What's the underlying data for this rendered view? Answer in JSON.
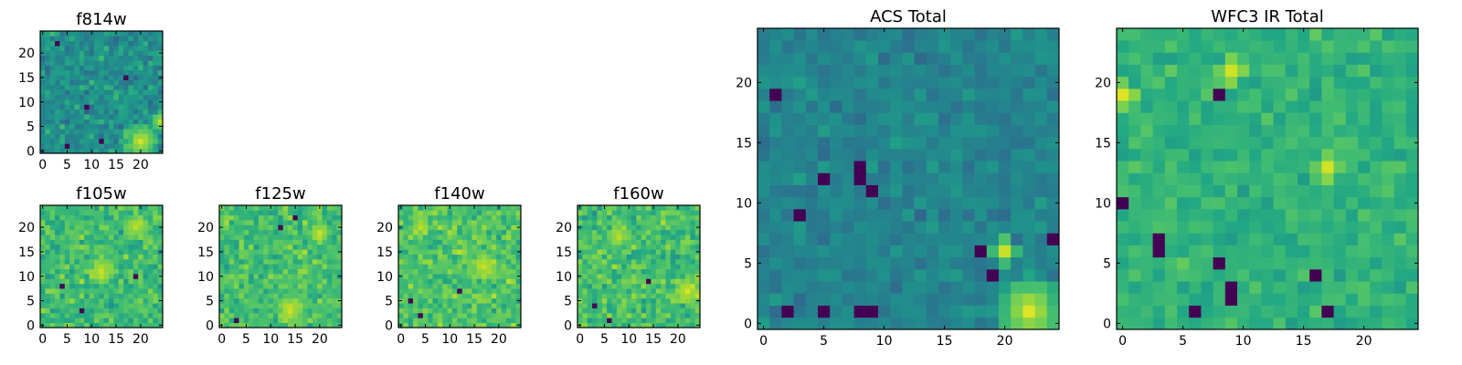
{
  "colormap": "viridis",
  "chart_data": [
    {
      "type": "heatmap",
      "title": "f814w",
      "grid_size": 25,
      "xticks": [
        "0",
        "5",
        "10",
        "15",
        "20"
      ],
      "yticks": [
        "0",
        "5",
        "10",
        "15",
        "20"
      ],
      "xlim": [
        -0.5,
        24.5
      ],
      "ylim": [
        -0.5,
        24.5
      ],
      "value_range": [
        0,
        1
      ],
      "noise_seed": 814,
      "noise_mean": 0.5,
      "noise_spread": 0.22,
      "hotspots": [
        {
          "x": 20,
          "y": 2,
          "radius": 4,
          "value": 0.95
        },
        {
          "x": 24,
          "y": 6,
          "radius": 2,
          "value": 0.9
        }
      ],
      "dark_spots": [
        {
          "x": 5,
          "y": 1
        },
        {
          "x": 9,
          "y": 9
        },
        {
          "x": 12,
          "y": 2
        },
        {
          "x": 3,
          "y": 22
        },
        {
          "x": 17,
          "y": 15
        }
      ]
    },
    {
      "type": "heatmap",
      "title": "f105w",
      "grid_size": 25,
      "xticks": [
        "0",
        "5",
        "10",
        "15",
        "20"
      ],
      "yticks": [
        "0",
        "5",
        "10",
        "15",
        "20"
      ],
      "xlim": [
        -0.5,
        24.5
      ],
      "ylim": [
        -0.5,
        24.5
      ],
      "value_range": [
        0,
        1
      ],
      "noise_seed": 105,
      "noise_mean": 0.68,
      "noise_spread": 0.2,
      "hotspots": [
        {
          "x": 12,
          "y": 11,
          "radius": 3,
          "value": 0.92
        },
        {
          "x": 19,
          "y": 20,
          "radius": 3,
          "value": 0.9
        }
      ],
      "dark_spots": [
        {
          "x": 4,
          "y": 8
        },
        {
          "x": 19,
          "y": 10
        },
        {
          "x": 8,
          "y": 3
        }
      ]
    },
    {
      "type": "heatmap",
      "title": "f125w",
      "grid_size": 25,
      "xticks": [
        "0",
        "5",
        "10",
        "15",
        "20"
      ],
      "yticks": [
        "0",
        "5",
        "10",
        "15",
        "20"
      ],
      "xlim": [
        -0.5,
        24.5
      ],
      "ylim": [
        -0.5,
        24.5
      ],
      "value_range": [
        0,
        1
      ],
      "noise_seed": 125,
      "noise_mean": 0.7,
      "noise_spread": 0.2,
      "hotspots": [
        {
          "x": 14,
          "y": 3,
          "radius": 3,
          "value": 0.93
        },
        {
          "x": 20,
          "y": 19,
          "radius": 2,
          "value": 0.92
        }
      ],
      "dark_spots": [
        {
          "x": 12,
          "y": 20
        },
        {
          "x": 3,
          "y": 1
        },
        {
          "x": 15,
          "y": 22
        }
      ]
    },
    {
      "type": "heatmap",
      "title": "f140w",
      "grid_size": 25,
      "xticks": [
        "0",
        "5",
        "10",
        "15",
        "20"
      ],
      "yticks": [
        "0",
        "5",
        "10",
        "15",
        "20"
      ],
      "xlim": [
        -0.5,
        24.5
      ],
      "ylim": [
        -0.5,
        24.5
      ],
      "value_range": [
        0,
        1
      ],
      "noise_seed": 140,
      "noise_mean": 0.72,
      "noise_spread": 0.2,
      "hotspots": [
        {
          "x": 17,
          "y": 12,
          "radius": 3,
          "value": 0.92
        },
        {
          "x": 4,
          "y": 20,
          "radius": 2,
          "value": 0.9
        }
      ],
      "dark_spots": [
        {
          "x": 2,
          "y": 5
        },
        {
          "x": 4,
          "y": 2
        },
        {
          "x": 12,
          "y": 7
        }
      ]
    },
    {
      "type": "heatmap",
      "title": "f160w",
      "grid_size": 25,
      "xticks": [
        "0",
        "5",
        "10",
        "15",
        "20"
      ],
      "yticks": [
        "0",
        "5",
        "10",
        "15",
        "20"
      ],
      "xlim": [
        -0.5,
        24.5
      ],
      "ylim": [
        -0.5,
        24.5
      ],
      "value_range": [
        0,
        1
      ],
      "noise_seed": 160,
      "noise_mean": 0.7,
      "noise_spread": 0.21,
      "hotspots": [
        {
          "x": 22,
          "y": 7,
          "radius": 3,
          "value": 0.95
        },
        {
          "x": 8,
          "y": 18,
          "radius": 2,
          "value": 0.9
        }
      ],
      "dark_spots": [
        {
          "x": 6,
          "y": 1
        },
        {
          "x": 3,
          "y": 4
        },
        {
          "x": 14,
          "y": 9
        }
      ]
    },
    {
      "type": "heatmap",
      "title": "ACS Total",
      "grid_size": 25,
      "xticks": [
        "0",
        "5",
        "10",
        "15",
        "20"
      ],
      "yticks": [
        "0",
        "5",
        "10",
        "15",
        "20"
      ],
      "xlim": [
        -0.5,
        24.5
      ],
      "ylim": [
        -0.5,
        24.5
      ],
      "value_range": [
        0,
        1
      ],
      "noise_seed": 3010,
      "noise_mean": 0.45,
      "noise_spread": 0.13,
      "hotspots": [
        {
          "x": 22,
          "y": 1,
          "radius": 3,
          "value": 0.95
        },
        {
          "x": 20,
          "y": 6,
          "radius": 1,
          "value": 0.92
        }
      ],
      "dark_spots": [
        {
          "x": 2,
          "y": 1
        },
        {
          "x": 5,
          "y": 1
        },
        {
          "x": 8,
          "y": 1
        },
        {
          "x": 9,
          "y": 1
        },
        {
          "x": 8,
          "y": 13
        },
        {
          "x": 8,
          "y": 12
        },
        {
          "x": 9,
          "y": 11
        },
        {
          "x": 5,
          "y": 12
        },
        {
          "x": 1,
          "y": 19
        },
        {
          "x": 19,
          "y": 4
        },
        {
          "x": 18,
          "y": 6
        },
        {
          "x": 24,
          "y": 7
        },
        {
          "x": 3,
          "y": 9
        }
      ]
    },
    {
      "type": "heatmap",
      "title": "WFC3 IR Total",
      "grid_size": 25,
      "xticks": [
        "0",
        "5",
        "10",
        "15",
        "20"
      ],
      "yticks": [
        "0",
        "5",
        "10",
        "15",
        "20"
      ],
      "xlim": [
        -0.5,
        24.5
      ],
      "ylim": [
        -0.5,
        24.5
      ],
      "value_range": [
        0,
        1
      ],
      "noise_seed": 4022,
      "noise_mean": 0.65,
      "noise_spread": 0.13,
      "hotspots": [
        {
          "x": 0,
          "y": 19,
          "radius": 1,
          "value": 0.95
        },
        {
          "x": 17,
          "y": 13,
          "radius": 1,
          "value": 0.93
        },
        {
          "x": 9,
          "y": 21,
          "radius": 1,
          "value": 0.93
        }
      ],
      "dark_spots": [
        {
          "x": 3,
          "y": 7
        },
        {
          "x": 3,
          "y": 6
        },
        {
          "x": 8,
          "y": 5
        },
        {
          "x": 9,
          "y": 3
        },
        {
          "x": 9,
          "y": 2
        },
        {
          "x": 6,
          "y": 1
        },
        {
          "x": 17,
          "y": 1
        },
        {
          "x": 0,
          "y": 10
        },
        {
          "x": 16,
          "y": 4
        },
        {
          "x": 8,
          "y": 19
        }
      ]
    }
  ]
}
